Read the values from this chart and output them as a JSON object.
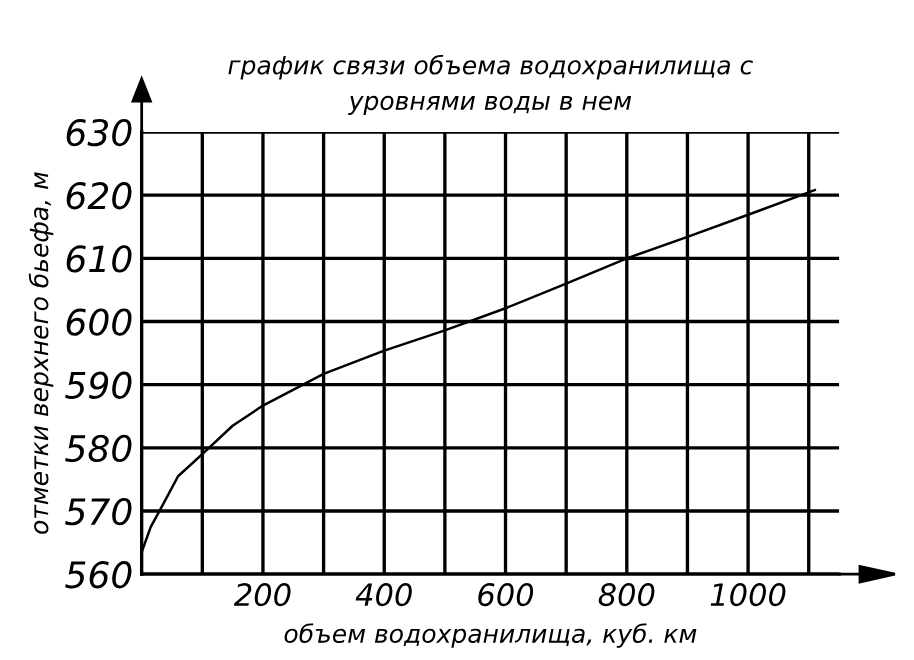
{
  "chart_data": {
    "type": "line",
    "title": "график связи объема водохранилища с\nуровнями воды в нем",
    "xlabel": "объем водохранилища, куб. км",
    "ylabel": "отметки верхнего бьефа, м",
    "x": [
      0,
      15,
      35,
      60,
      100,
      150,
      200,
      300,
      400,
      500,
      600,
      700,
      800,
      900,
      1000,
      1110
    ],
    "series": [
      {
        "color": "#000000",
        "values": [
          563.5,
          567.5,
          571,
          575.5,
          579,
          583.5,
          586.7,
          591.7,
          595.4,
          598.6,
          602.1,
          606,
          610,
          613.4,
          616.9,
          620.8
        ]
      }
    ],
    "xlim": [
      0,
      1150
    ],
    "ylim": [
      560,
      630
    ],
    "xticks": [
      {
        "value": 100,
        "label": null
      },
      200,
      {
        "value": 300,
        "label": null
      },
      400,
      {
        "value": 500,
        "label": null
      },
      600,
      {
        "value": 700,
        "label": null
      },
      800,
      {
        "value": 900,
        "label": null
      },
      1000,
      {
        "value": 1100,
        "label": null
      }
    ],
    "yticks": [
      560,
      570,
      580,
      590,
      600,
      610,
      620,
      630
    ],
    "grid": true,
    "marker": "none",
    "line_style": "solid"
  }
}
